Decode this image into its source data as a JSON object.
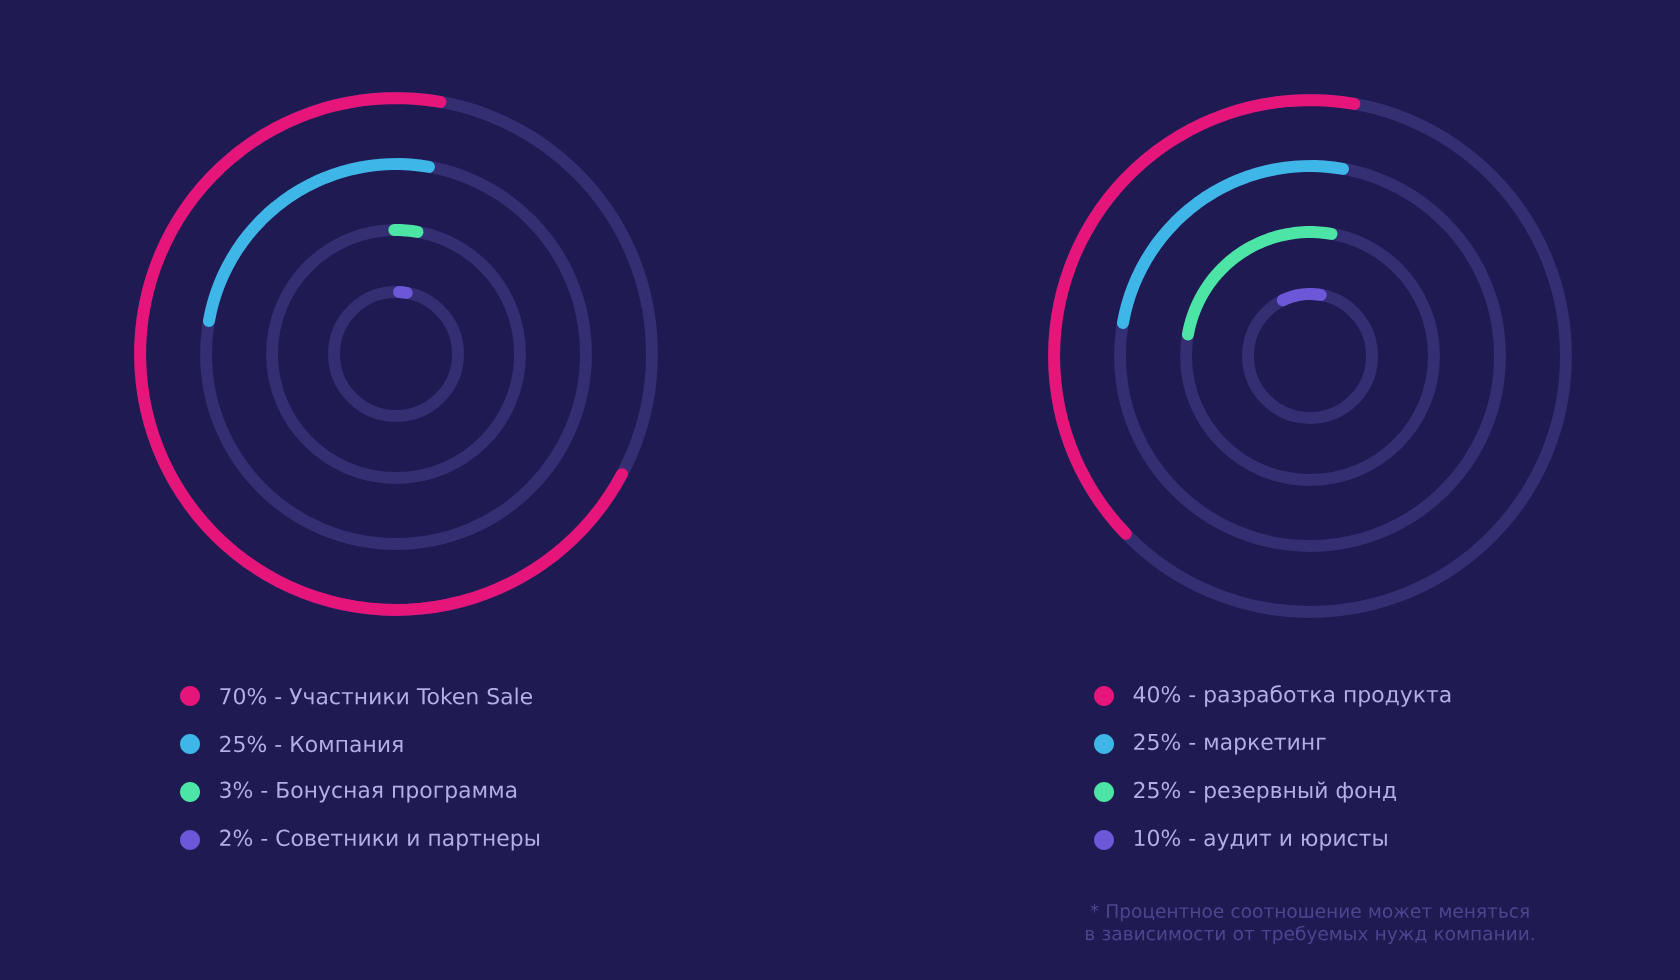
{
  "chart_data": [
    {
      "type": "other",
      "categories": [
        "- Участники Token Sale",
        "- Компания",
        "- Бонусная программа",
        "- Советники и партнеры"
      ],
      "values": [
        70,
        25,
        3,
        2
      ],
      "value_labels": [
        "70%",
        "25%",
        "3%",
        "2%"
      ],
      "colors": [
        "#e5157a",
        "#3fb6e8",
        "#4de5a5",
        "#6b57d8"
      ]
    },
    {
      "type": "other",
      "categories": [
        "- разработка продукта",
        "- маркетинг",
        "- резервный фонд",
        "- аудит и юристы"
      ],
      "values": [
        40,
        25,
        25,
        10
      ],
      "value_labels": [
        "40%",
        "25%",
        "25%",
        "10%"
      ],
      "colors": [
        "#e5157a",
        "#3fb6e8",
        "#4de5a5",
        "#6b57d8"
      ],
      "annotations": [
        "* Процентное соотношение может меняться в зависимости от требуемых нужд компании."
      ]
    }
  ]
}
